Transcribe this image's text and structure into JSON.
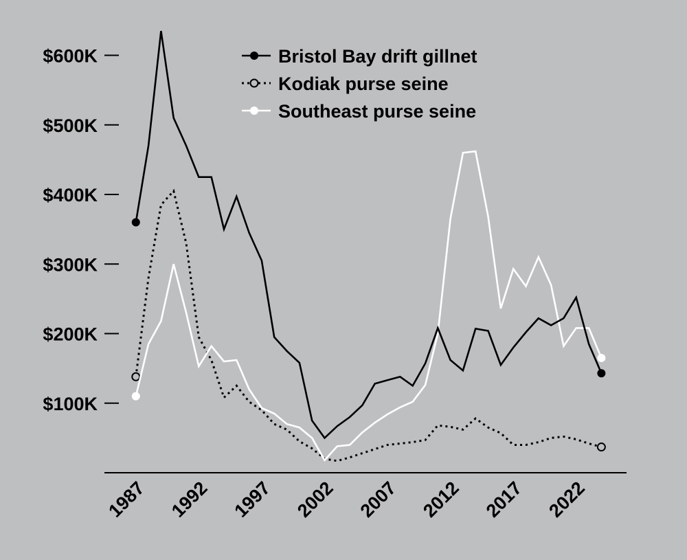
{
  "chart_data": {
    "type": "line",
    "title": "",
    "xlabel": "",
    "ylabel": "",
    "xlim": [
      1984.5,
      2026
    ],
    "ylim": [
      0,
      640000
    ],
    "grid": false,
    "legend": "top-center",
    "x": [
      1987,
      1988,
      1989,
      1990,
      1991,
      1992,
      1993,
      1994,
      1995,
      1996,
      1997,
      1998,
      1999,
      2000,
      2001,
      2002,
      2003,
      2004,
      2005,
      2006,
      2007,
      2008,
      2009,
      2010,
      2011,
      2012,
      2013,
      2014,
      2015,
      2016,
      2017,
      2018,
      2019,
      2020,
      2021,
      2022,
      2023,
      2024,
      2025
    ],
    "xticks": [
      {
        "value": 1987,
        "label": "1987"
      },
      {
        "value": 1992,
        "label": "1992"
      },
      {
        "value": 1997,
        "label": "1997"
      },
      {
        "value": 2002,
        "label": "2002"
      },
      {
        "value": 2007,
        "label": "2007"
      },
      {
        "value": 2012,
        "label": "2012"
      },
      {
        "value": 2017,
        "label": "2017"
      },
      {
        "value": 2022,
        "label": "2022"
      }
    ],
    "yticks": [
      {
        "value": 100000,
        "label": "$100K"
      },
      {
        "value": 200000,
        "label": "$200K"
      },
      {
        "value": 300000,
        "label": "$300K"
      },
      {
        "value": 400000,
        "label": "$400K"
      },
      {
        "value": 500000,
        "label": "$500K"
      },
      {
        "value": 600000,
        "label": "$600K"
      }
    ],
    "series": [
      {
        "name": "Bristol Bay drift gillnet",
        "color": "#000000",
        "style": "solid",
        "marker": "filled-black",
        "values": [
          360000,
          470000,
          635000,
          510000,
          470000,
          425000,
          425000,
          350000,
          397000,
          345000,
          305000,
          195000,
          175000,
          158000,
          75000,
          50000,
          67000,
          80000,
          97000,
          128000,
          133000,
          138000,
          125000,
          157000,
          208000,
          162000,
          147000,
          207000,
          204000,
          155000,
          180000,
          202000,
          222000,
          212000,
          222000,
          252000,
          185000,
          143000,
          null
        ]
      },
      {
        "name": "Kodiak purse seine",
        "color": "#000000",
        "style": "dotted",
        "marker": "open-black",
        "values": [
          138000,
          280000,
          385000,
          405000,
          330000,
          195000,
          162000,
          108000,
          125000,
          102000,
          90000,
          70000,
          62000,
          45000,
          35000,
          20000,
          17000,
          22000,
          28000,
          34000,
          40000,
          42000,
          44000,
          47000,
          68000,
          66000,
          62000,
          78000,
          65000,
          57000,
          40000,
          40000,
          44000,
          50000,
          52000,
          48000,
          42000,
          37000,
          null
        ]
      },
      {
        "name": "Southeast purse seine",
        "color": "#ffffff",
        "style": "solid",
        "marker": "filled-white",
        "values": [
          110000,
          185000,
          218000,
          300000,
          230000,
          153000,
          182000,
          160000,
          162000,
          120000,
          93000,
          85000,
          70000,
          65000,
          50000,
          18000,
          38000,
          40000,
          58000,
          72000,
          84000,
          94000,
          102000,
          126000,
          200000,
          365000,
          460000,
          462000,
          368000,
          236000,
          293000,
          268000,
          310000,
          270000,
          182000,
          208000,
          208000,
          165000,
          null
        ]
      }
    ]
  }
}
